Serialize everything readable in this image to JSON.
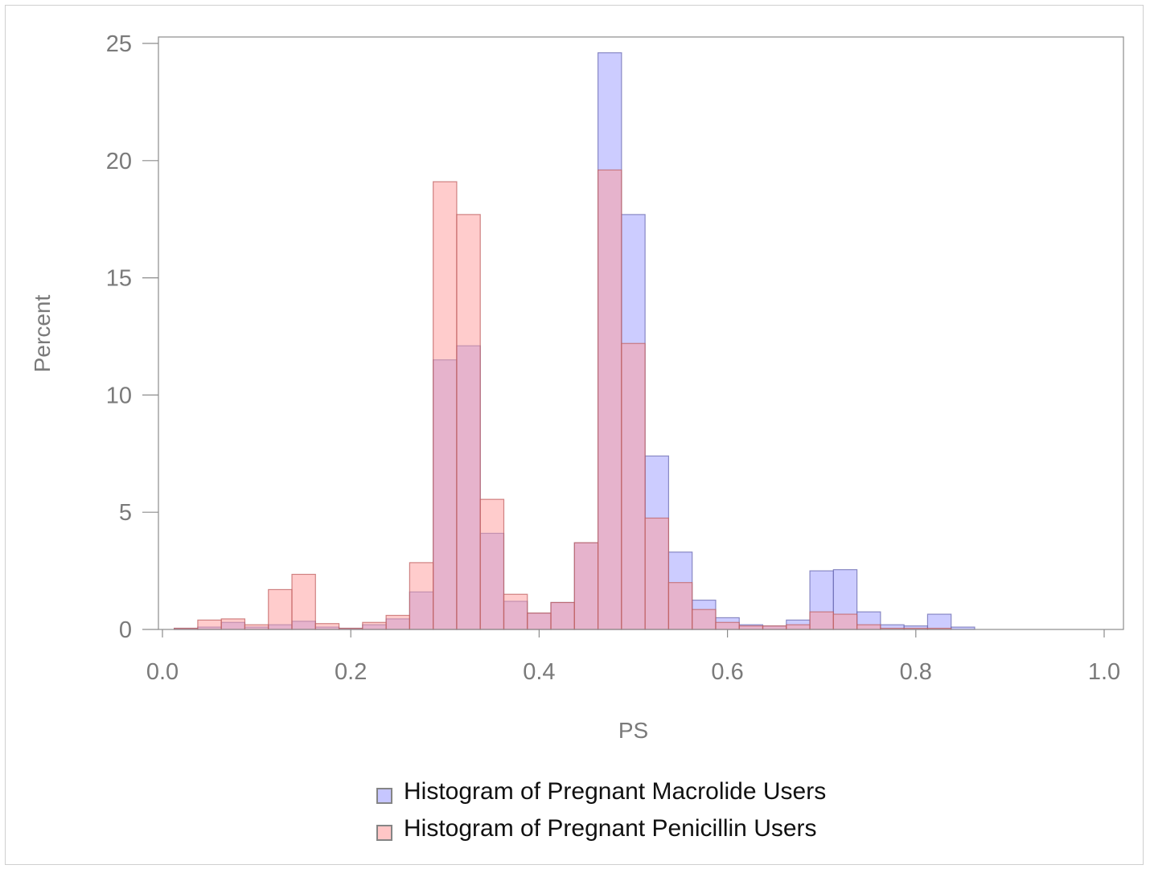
{
  "chart_data": {
    "type": "bar",
    "subtype": "overlaid-histogram",
    "xlabel": "PS",
    "ylabel": "Percent",
    "xlim": [
      0.0,
      1.0
    ],
    "ylim": [
      0,
      25
    ],
    "xticks": [
      "0.0",
      "0.2",
      "0.4",
      "0.6",
      "0.8",
      "1.0"
    ],
    "yticks": [
      "0",
      "5",
      "10",
      "15",
      "20",
      "25"
    ],
    "bin_width": 0.025,
    "bin_start": 0.0125,
    "legend_position": "bottom-center",
    "grid": false,
    "series": [
      {
        "name": "Histogram of Pregnant Macrolide Users",
        "color": "#9999ff",
        "values": [
          0.05,
          0.1,
          0.3,
          0.1,
          0.2,
          0.35,
          0.1,
          0.05,
          0.2,
          0.45,
          1.6,
          11.5,
          12.1,
          4.1,
          1.2,
          0.7,
          1.15,
          3.7,
          24.6,
          17.7,
          7.4,
          3.3,
          1.25,
          0.5,
          0.2,
          0.15,
          0.4,
          2.5,
          2.55,
          0.75,
          0.2,
          0.15,
          0.65,
          0.1,
          0,
          0,
          0,
          0,
          0,
          0
        ]
      },
      {
        "name": "Histogram of Pregnant Penicillin Users",
        "color": "#ff9999",
        "values": [
          0.05,
          0.4,
          0.45,
          0.2,
          1.7,
          2.35,
          0.25,
          0.05,
          0.3,
          0.6,
          2.85,
          19.1,
          17.7,
          5.55,
          1.5,
          0.7,
          1.15,
          3.7,
          19.6,
          12.2,
          4.75,
          2.0,
          0.85,
          0.3,
          0.15,
          0.15,
          0.2,
          0.75,
          0.65,
          0.2,
          0.05,
          0.05,
          0.05,
          0,
          0,
          0,
          0,
          0,
          0,
          0
        ]
      }
    ]
  }
}
